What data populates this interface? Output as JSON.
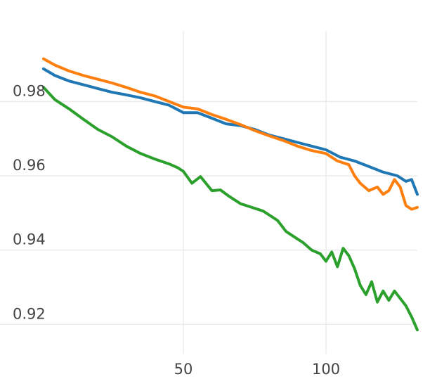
{
  "chart_data": {
    "type": "line",
    "title": "",
    "xlabel": "",
    "ylabel": "",
    "xlim": [
      1,
      132
    ],
    "ylim": [
      0.914,
      0.999
    ],
    "grid": true,
    "legend": "none",
    "x_ticks": [
      {
        "value": 50,
        "label": "50"
      },
      {
        "value": 100,
        "label": "100"
      }
    ],
    "y_ticks": [
      {
        "value": 0.92,
        "label": "0.92"
      },
      {
        "value": 0.94,
        "label": "0.94"
      },
      {
        "value": 0.96,
        "label": "0.96"
      },
      {
        "value": 0.98,
        "label": "0.98"
      }
    ],
    "series": [
      {
        "color": "#1f77b4",
        "x": [
          1,
          5,
          10,
          15,
          20,
          25,
          30,
          35,
          40,
          45,
          50,
          55,
          60,
          65,
          70,
          75,
          80,
          85,
          90,
          95,
          100,
          105,
          110,
          115,
          120,
          125,
          128,
          130,
          132
        ],
        "y": [
          0.9888,
          0.987,
          0.9855,
          0.9845,
          0.9835,
          0.9825,
          0.9818,
          0.981,
          0.98,
          0.979,
          0.977,
          0.977,
          0.9755,
          0.974,
          0.9735,
          0.9725,
          0.971,
          0.97,
          0.969,
          0.968,
          0.967,
          0.965,
          0.964,
          0.9625,
          0.961,
          0.96,
          0.9585,
          0.959,
          0.955
        ]
      },
      {
        "color": "#ff7f0e",
        "x": [
          1,
          5,
          10,
          15,
          20,
          25,
          30,
          35,
          40,
          45,
          50,
          55,
          60,
          65,
          70,
          75,
          80,
          85,
          90,
          95,
          100,
          104,
          108,
          110,
          112,
          115,
          118,
          120,
          122,
          124,
          126,
          128,
          130,
          132
        ],
        "y": [
          0.9915,
          0.9898,
          0.9882,
          0.987,
          0.986,
          0.985,
          0.9838,
          0.9825,
          0.9815,
          0.98,
          0.9785,
          0.978,
          0.9765,
          0.9752,
          0.9738,
          0.9722,
          0.9708,
          0.9695,
          0.968,
          0.9668,
          0.966,
          0.964,
          0.963,
          0.96,
          0.958,
          0.956,
          0.957,
          0.955,
          0.956,
          0.959,
          0.957,
          0.952,
          0.951,
          0.9515
        ]
      },
      {
        "color": "#2ca02c",
        "x": [
          1,
          5,
          10,
          15,
          20,
          25,
          30,
          35,
          40,
          45,
          48,
          50,
          53,
          56,
          60,
          63,
          66,
          70,
          74,
          78,
          80,
          83,
          86,
          90,
          92,
          95,
          98,
          100,
          102,
          104,
          106,
          108,
          110,
          112,
          114,
          116,
          118,
          120,
          122,
          124,
          126,
          128,
          130,
          132
        ],
        "y": [
          0.9838,
          0.9805,
          0.978,
          0.9752,
          0.9725,
          0.9705,
          0.968,
          0.966,
          0.9645,
          0.9632,
          0.9622,
          0.9612,
          0.958,
          0.9598,
          0.956,
          0.9562,
          0.9545,
          0.9525,
          0.9515,
          0.9505,
          0.9495,
          0.948,
          0.945,
          0.943,
          0.942,
          0.94,
          0.939,
          0.937,
          0.9395,
          0.9355,
          0.9405,
          0.9385,
          0.935,
          0.9305,
          0.928,
          0.9315,
          0.926,
          0.929,
          0.9265,
          0.929,
          0.927,
          0.925,
          0.922,
          0.9185
        ]
      }
    ]
  }
}
